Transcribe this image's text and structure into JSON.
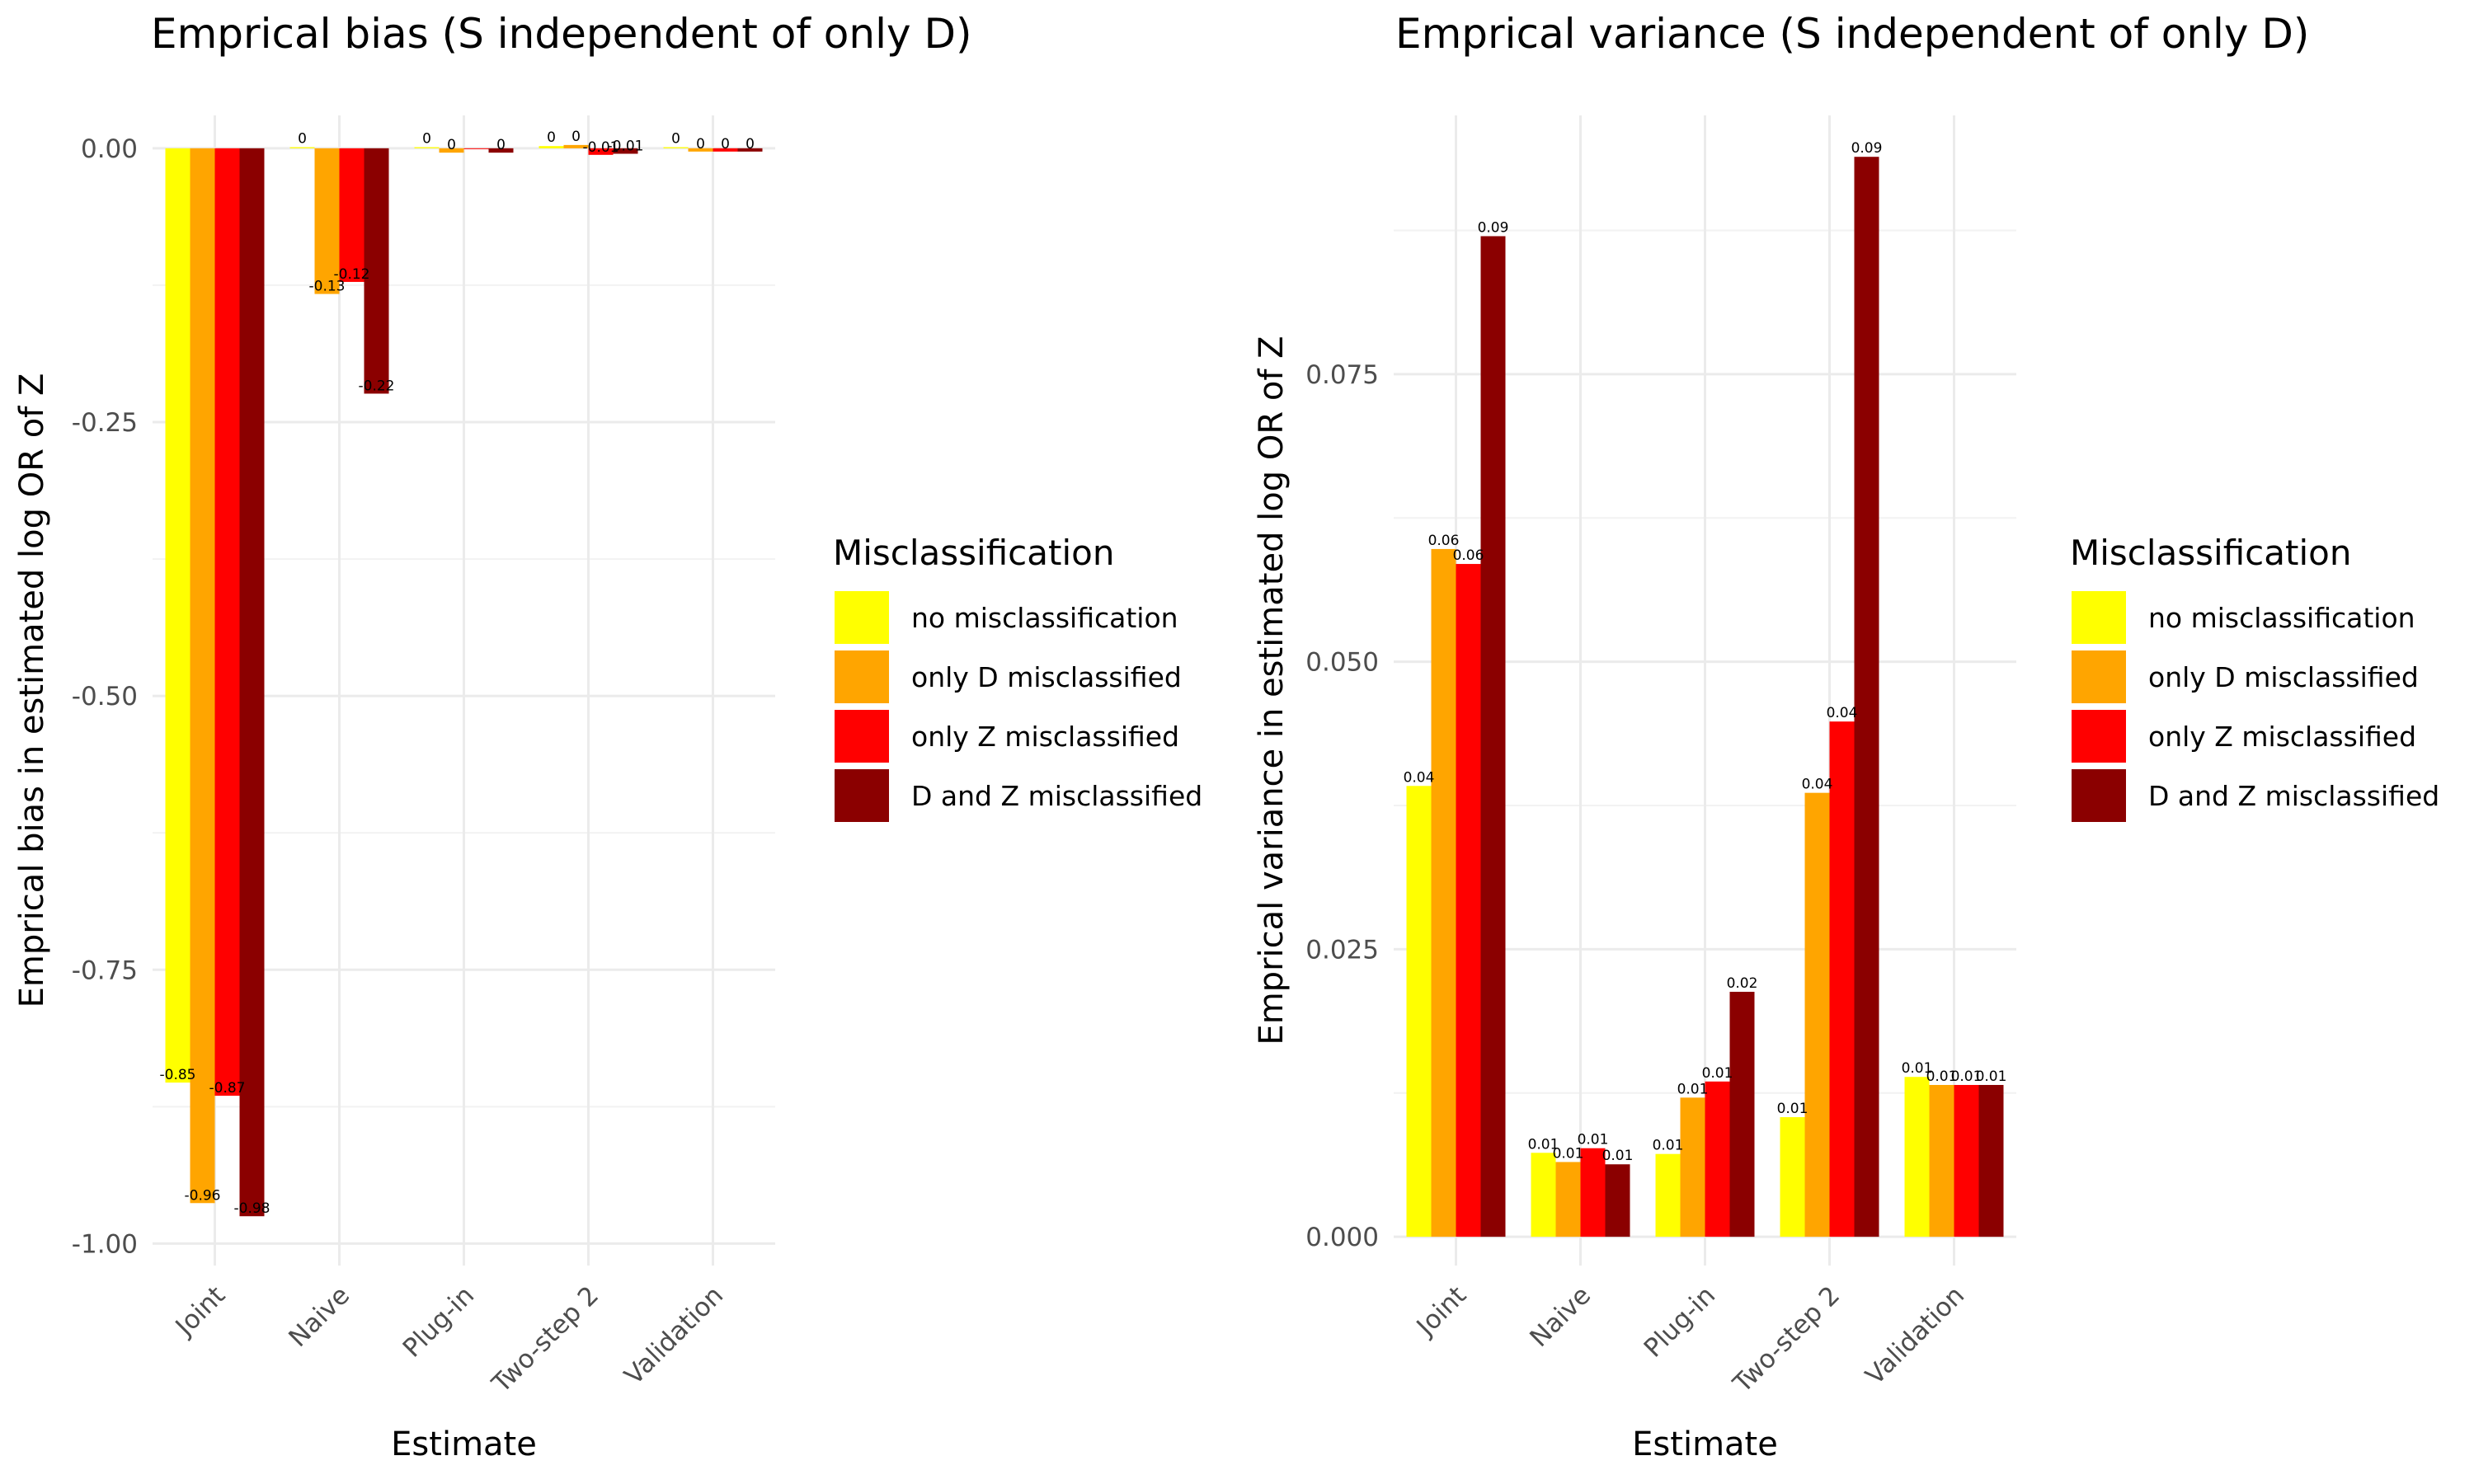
{
  "chart_data": [
    {
      "type": "bar",
      "title": "Emprical bias (S independent of only D)",
      "xlabel": "Estimate",
      "ylabel": "Emprical bias in estimated log OR of Z",
      "categories": [
        "Joint",
        "Naive",
        "Plug-in",
        "Two-step 2",
        "Validation"
      ],
      "ylim": [
        -1.02,
        0.03
      ],
      "yticks": [
        0.0,
        -0.25,
        -0.5,
        -0.75,
        -1.0
      ],
      "ytick_labels": [
        "0.00",
        "-0.25",
        "-0.50",
        "-0.75",
        "-1.00"
      ],
      "grid": true,
      "legend": {
        "title": "Misclassification",
        "position": "right"
      },
      "series": [
        {
          "name": "no misclassification",
          "color": "#FFFF00",
          "values": [
            -0.853,
            0.001,
            0.001,
            0.002,
            0.001
          ],
          "labels": [
            "-0.85",
            "0",
            "0",
            "0",
            "0"
          ]
        },
        {
          "name": "only D misclassified",
          "color": "#FFA500",
          "values": [
            -0.963,
            -0.133,
            -0.004,
            0.003,
            -0.003
          ],
          "labels": [
            "-0.96",
            "-0.13",
            "0",
            "0",
            "0"
          ]
        },
        {
          "name": "only Z misclassified",
          "color": "#FF0000",
          "values": [
            -0.865,
            -0.122,
            0.0,
            -0.006,
            -0.003
          ],
          "labels": [
            "-0.87",
            "-0.12",
            "",
            "-0.01",
            "0"
          ]
        },
        {
          "name": "D and Z misclassified",
          "color": "#8B0000",
          "values": [
            -0.975,
            -0.224,
            -0.004,
            -0.005,
            -0.003
          ],
          "labels": [
            "-0.98",
            "-0.22",
            "0",
            "-0.01",
            "0"
          ]
        }
      ]
    },
    {
      "type": "bar",
      "title": "Emprical variance (S independent of only D)",
      "xlabel": "Estimate",
      "ylabel": "Emprical variance in estimated log OR of Z",
      "categories": [
        "Joint",
        "Naive",
        "Plug-in",
        "Two-step 2",
        "Validation"
      ],
      "ylim": [
        -0.0025,
        0.0975
      ],
      "yticks": [
        0.0,
        0.025,
        0.05,
        0.075
      ],
      "ytick_labels": [
        "0.000",
        "0.025",
        "0.050",
        "0.075"
      ],
      "grid": true,
      "legend": {
        "title": "Misclassification",
        "position": "right"
      },
      "series": [
        {
          "name": "no misclassification",
          "color": "#FFFF00",
          "values": [
            0.0392,
            0.0073,
            0.0072,
            0.0104,
            0.0139
          ],
          "labels": [
            "0.04",
            "0.01",
            "0.01",
            "0.01",
            "0.01"
          ]
        },
        {
          "name": "only D misclassified",
          "color": "#FFA500",
          "values": [
            0.0598,
            0.0065,
            0.0121,
            0.0386,
            0.0132
          ],
          "labels": [
            "0.06",
            "0.01",
            "0.01",
            "0.04",
            "0.01"
          ]
        },
        {
          "name": "only Z misclassified",
          "color": "#FF0000",
          "values": [
            0.0585,
            0.0077,
            0.0135,
            0.0448,
            0.0132
          ],
          "labels": [
            "0.06",
            "0.01",
            "0.01",
            "0.04",
            "0.01"
          ]
        },
        {
          "name": "D and Z misclassified",
          "color": "#8B0000",
          "values": [
            0.087,
            0.0063,
            0.0213,
            0.0939,
            0.0132
          ],
          "labels": [
            "0.09",
            "0.01",
            "0.02",
            "0.09",
            "0.01"
          ]
        }
      ]
    }
  ]
}
